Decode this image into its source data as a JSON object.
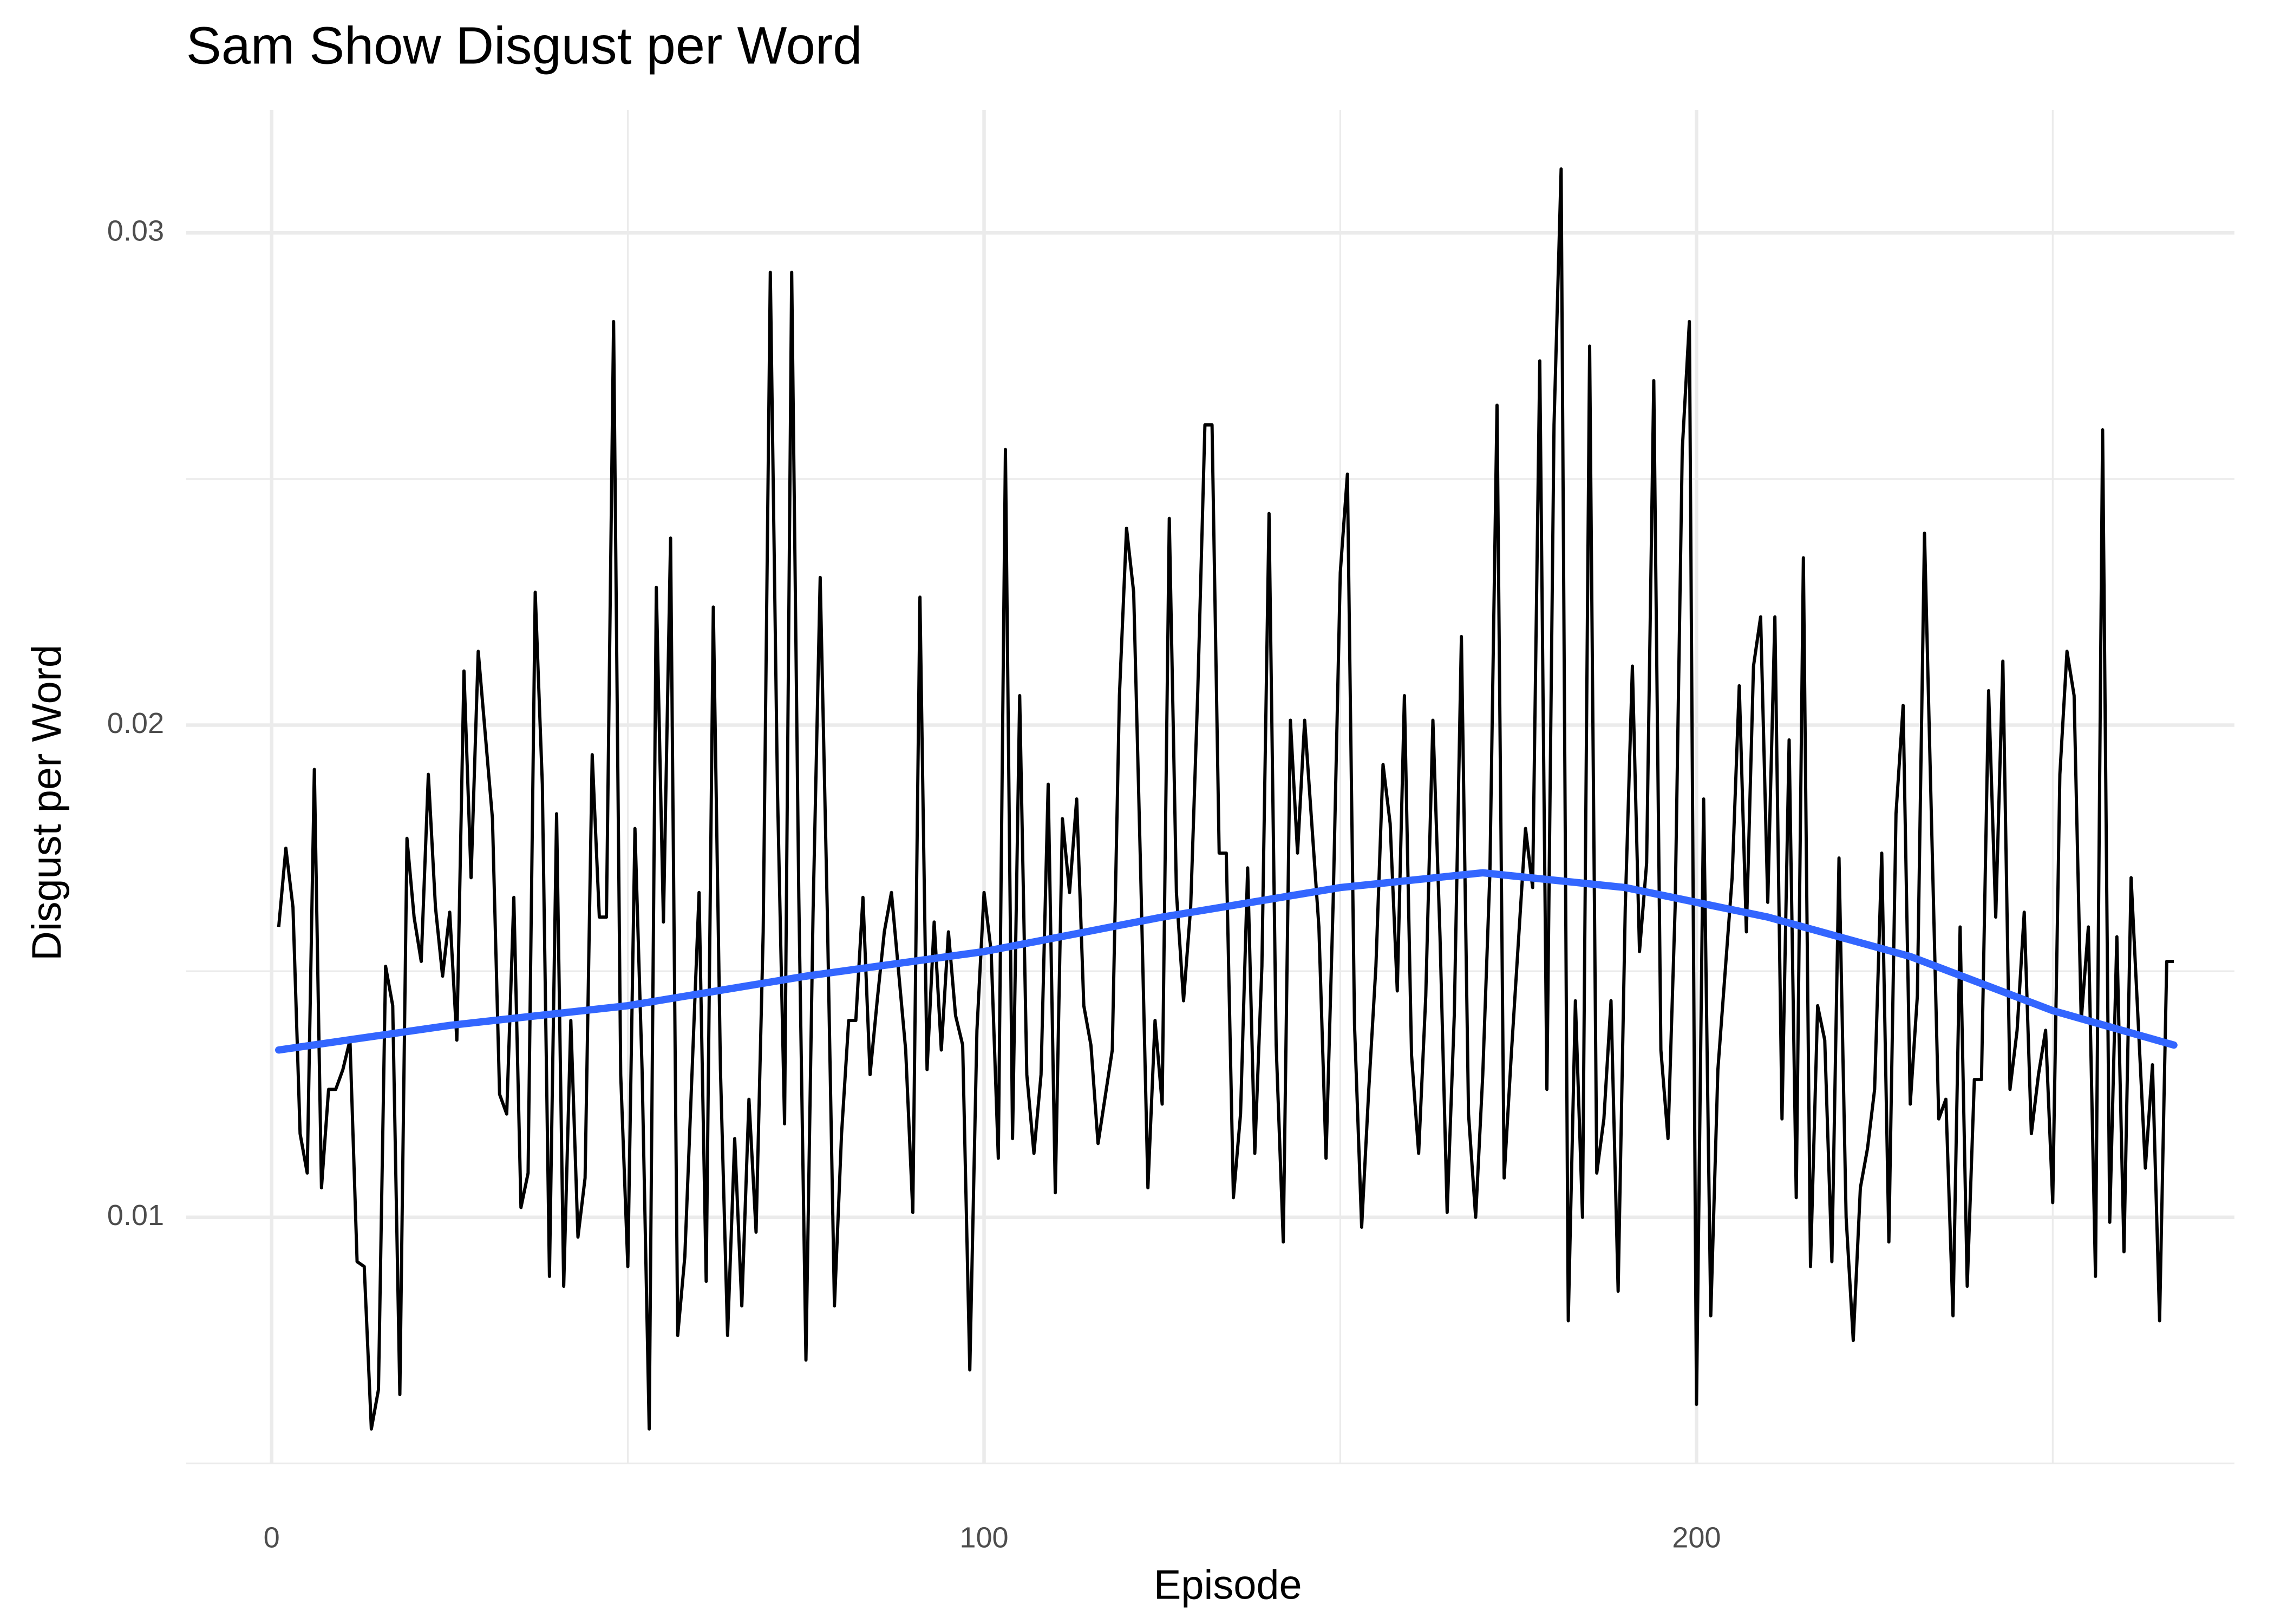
{
  "chart_data": {
    "type": "line",
    "title": "Sam Show Disgust per Word",
    "x_label": "Episode",
    "y_label": "Disgust per Word",
    "color": "#000000",
    "x": [
      1,
      2,
      3,
      4,
      5,
      6,
      7,
      8,
      9,
      10,
      11,
      12,
      13,
      14,
      15,
      16,
      17,
      18,
      19,
      20,
      21,
      22,
      23,
      24,
      25,
      26,
      27,
      28,
      29,
      31,
      32,
      33,
      34,
      35,
      36,
      37,
      38,
      39,
      40,
      41,
      42,
      43,
      44,
      45,
      46,
      47,
      48,
      49,
      50,
      51,
      52,
      53,
      54,
      55,
      56,
      57,
      58,
      60,
      61,
      62,
      63,
      64,
      65,
      66,
      67,
      68,
      69,
      70,
      71,
      72,
      73,
      74,
      75,
      76,
      77,
      78,
      79,
      80,
      81,
      82,
      83,
      84,
      85,
      86,
      87,
      89,
      90,
      91,
      92,
      93,
      94,
      95,
      96,
      97,
      98,
      99,
      100,
      101,
      102,
      103,
      104,
      105,
      106,
      107,
      108,
      109,
      110,
      111,
      112,
      113,
      114,
      115,
      116,
      118,
      119,
      120,
      121,
      122,
      123,
      124,
      125,
      126,
      127,
      128,
      129,
      130,
      131,
      132,
      133,
      134,
      135,
      136,
      137,
      138,
      139,
      140,
      141,
      142,
      143,
      144,
      145,
      147,
      148,
      149,
      150,
      151,
      152,
      153,
      154,
      155,
      156,
      157,
      158,
      159,
      160,
      161,
      162,
      163,
      164,
      165,
      166,
      167,
      168,
      169,
      170,
      171,
      172,
      173,
      174,
      176,
      177,
      178,
      179,
      180,
      181,
      182,
      183,
      184,
      185,
      186,
      187,
      188,
      189,
      190,
      191,
      192,
      193,
      194,
      195,
      196,
      197,
      198,
      199,
      200,
      201,
      202,
      203,
      205,
      206,
      207,
      208,
      209,
      210,
      211,
      212,
      213,
      214,
      215,
      216,
      217,
      218,
      219,
      220,
      221,
      222,
      223,
      224,
      225,
      226,
      227,
      228,
      229,
      230,
      231,
      232,
      234,
      235,
      236,
      237,
      238,
      239,
      240,
      241,
      242,
      243,
      244,
      245,
      246,
      247,
      248,
      249,
      250,
      251,
      252,
      253,
      254,
      255,
      256,
      257,
      258,
      259,
      260,
      261,
      263,
      264,
      265,
      266,
      267
    ],
    "values": [
      0.0159,
      0.0175,
      0.0163,
      0.0117,
      0.0109,
      0.0191,
      0.0106,
      0.0126,
      0.0126,
      0.013,
      0.0136,
      0.0091,
      0.009,
      0.0057,
      0.0065,
      0.0151,
      0.0143,
      0.0064,
      0.0177,
      0.0161,
      0.0152,
      0.019,
      0.0163,
      0.0149,
      0.0162,
      0.0136,
      0.0211,
      0.0169,
      0.0215,
      0.0181,
      0.0125,
      0.0121,
      0.0165,
      0.0102,
      0.0109,
      0.0227,
      0.0188,
      0.0088,
      0.0182,
      0.0086,
      0.014,
      0.0096,
      0.0108,
      0.0194,
      0.0161,
      0.0161,
      0.0282,
      0.0129,
      0.009,
      0.0179,
      0.013,
      0.0057,
      0.0228,
      0.016,
      0.0238,
      0.0076,
      0.0092,
      0.0166,
      0.0087,
      0.0224,
      0.013,
      0.0076,
      0.0116,
      0.0082,
      0.0124,
      0.0097,
      0.0158,
      0.0292,
      0.0187,
      0.0119,
      0.0292,
      0.0165,
      0.0071,
      0.0162,
      0.023,
      0.0162,
      0.0082,
      0.0117,
      0.014,
      0.014,
      0.0165,
      0.0129,
      0.0144,
      0.0158,
      0.0166,
      0.0134,
      0.0101,
      0.0226,
      0.013,
      0.016,
      0.0134,
      0.0158,
      0.0141,
      0.0135,
      0.0069,
      0.0138,
      0.0166,
      0.0154,
      0.0112,
      0.0256,
      0.0116,
      0.0206,
      0.0129,
      0.0113,
      0.0129,
      0.0188,
      0.0105,
      0.0181,
      0.0166,
      0.0185,
      0.0143,
      0.0135,
      0.0115,
      0.0134,
      0.0206,
      0.024,
      0.0227,
      0.0169,
      0.0106,
      0.014,
      0.0123,
      0.0242,
      0.0166,
      0.0144,
      0.0163,
      0.0207,
      0.0261,
      0.0261,
      0.0174,
      0.0174,
      0.0104,
      0.0121,
      0.0171,
      0.0113,
      0.0151,
      0.0243,
      0.0135,
      0.0095,
      0.0201,
      0.0174,
      0.0201,
      0.0159,
      0.0112,
      0.0164,
      0.0231,
      0.0251,
      0.0139,
      0.0098,
      0.0126,
      0.0151,
      0.0192,
      0.018,
      0.0146,
      0.0206,
      0.0133,
      0.0113,
      0.0145,
      0.0201,
      0.0157,
      0.0101,
      0.0141,
      0.0218,
      0.0121,
      0.01,
      0.0129,
      0.017,
      0.0265,
      0.0108,
      0.0133,
      0.0179,
      0.0167,
      0.0274,
      0.0126,
      0.0261,
      0.0313,
      0.0079,
      0.0144,
      0.01,
      0.0277,
      0.0109,
      0.012,
      0.0144,
      0.0085,
      0.0163,
      0.0212,
      0.0154,
      0.0172,
      0.027,
      0.0134,
      0.0116,
      0.0163,
      0.0256,
      0.0282,
      0.0062,
      0.0185,
      0.008,
      0.013,
      0.0169,
      0.0208,
      0.0158,
      0.0212,
      0.0222,
      0.0164,
      0.0222,
      0.012,
      0.0197,
      0.0104,
      0.0234,
      0.009,
      0.0143,
      0.0136,
      0.0091,
      0.0173,
      0.01,
      0.0075,
      0.0106,
      0.0114,
      0.0126,
      0.0174,
      0.0095,
      0.0182,
      0.0204,
      0.0123,
      0.0145,
      0.0239,
      0.012,
      0.0124,
      0.008,
      0.0159,
      0.0086,
      0.0128,
      0.0128,
      0.0207,
      0.0161,
      0.0213,
      0.0126,
      0.0138,
      0.0162,
      0.0117,
      0.0129,
      0.0138,
      0.0103,
      0.019,
      0.0215,
      0.0206,
      0.014,
      0.0159,
      0.0088,
      0.026,
      0.0099,
      0.0157,
      0.0093,
      0.0169,
      0.011,
      0.0131,
      0.0079,
      0.0152,
      0.0152
    ],
    "smooth": {
      "color": "#3366ff",
      "x": [
        1,
        25,
        50,
        75,
        100,
        125,
        150,
        170,
        190,
        210,
        230,
        250,
        267
      ],
      "values": [
        0.0134,
        0.0139,
        0.0143,
        0.0149,
        0.0154,
        0.0161,
        0.0167,
        0.017,
        0.0167,
        0.0161,
        0.0153,
        0.0142,
        0.0135
      ]
    },
    "xlim": [
      -12,
      275.5
    ],
    "ylim": [
      0.005,
      0.0325
    ],
    "xticks": [
      0,
      100,
      200
    ],
    "yticks": [
      0.01,
      0.02,
      0.03
    ],
    "x_minor_grid": [
      50,
      150,
      250
    ],
    "y_minor_grid": [
      0.005,
      0.015,
      0.025
    ],
    "grid": true
  }
}
